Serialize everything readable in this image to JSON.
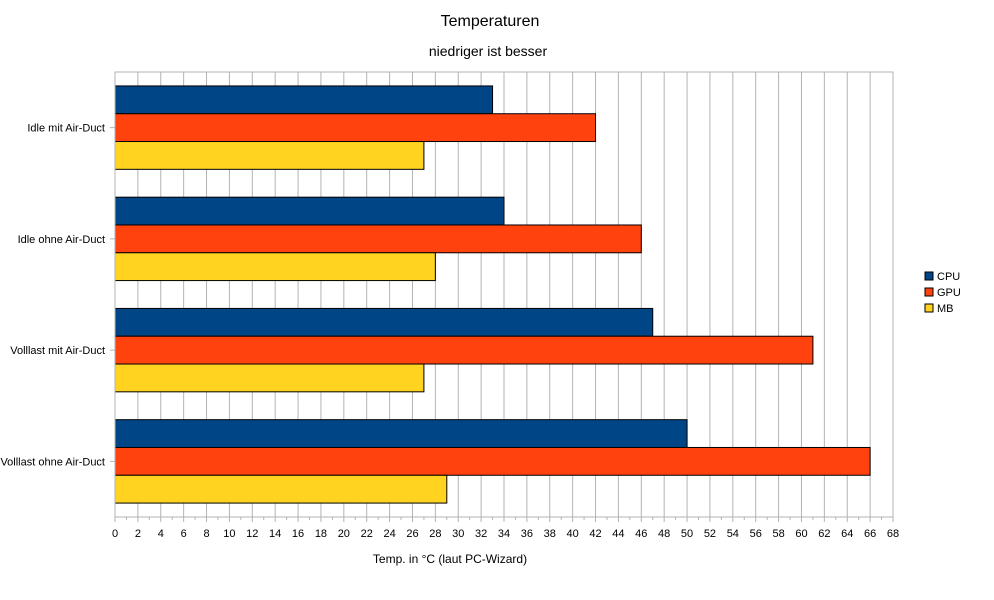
{
  "chart_data": {
    "type": "bar",
    "orientation": "horizontal",
    "title": "Temperaturen",
    "subtitle": "niedriger ist besser",
    "xlabel": "Temp. in °C (laut PC-Wizard)",
    "ylabel": "",
    "xlim": [
      0,
      68
    ],
    "x_tick_step": 2,
    "grid": true,
    "legend_position": "right",
    "categories": [
      "Idle mit Air-Duct",
      "Idle ohne Air-Duct",
      "Volllast mit Air-Duct",
      "Volllast ohne Air-Duct"
    ],
    "series": [
      {
        "name": "CPU",
        "color": "#004586",
        "values": [
          33,
          34,
          47,
          50
        ]
      },
      {
        "name": "GPU",
        "color": "#ff420e",
        "values": [
          42,
          46,
          61,
          66
        ]
      },
      {
        "name": "MB",
        "color": "#ffd320",
        "values": [
          27,
          28,
          27,
          29
        ]
      }
    ]
  }
}
